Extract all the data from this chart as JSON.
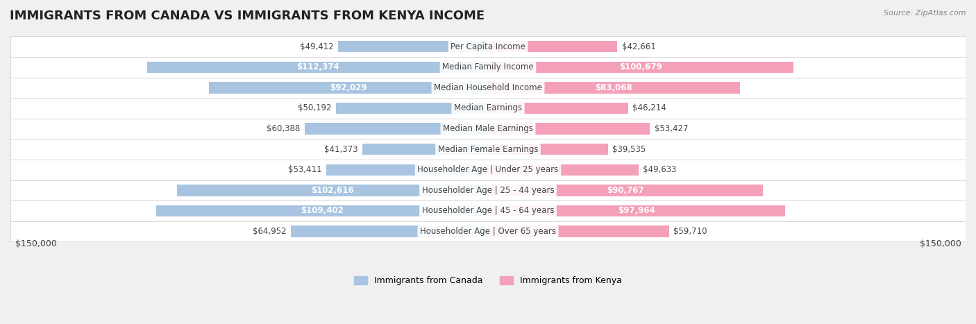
{
  "title": "IMMIGRANTS FROM CANADA VS IMMIGRANTS FROM KENYA INCOME",
  "source": "Source: ZipAtlas.com",
  "categories": [
    "Per Capita Income",
    "Median Family Income",
    "Median Household Income",
    "Median Earnings",
    "Median Male Earnings",
    "Median Female Earnings",
    "Householder Age | Under 25 years",
    "Householder Age | 25 - 44 years",
    "Householder Age | 45 - 64 years",
    "Householder Age | Over 65 years"
  ],
  "canada_values": [
    49412,
    112374,
    92029,
    50192,
    60388,
    41373,
    53411,
    102616,
    109402,
    64952
  ],
  "kenya_values": [
    42661,
    100679,
    83068,
    46214,
    53427,
    39535,
    49633,
    90767,
    97964,
    59710
  ],
  "canada_labels": [
    "$49,412",
    "$112,374",
    "$92,029",
    "$50,192",
    "$60,388",
    "$41,373",
    "$53,411",
    "$102,616",
    "$109,402",
    "$64,952"
  ],
  "kenya_labels": [
    "$42,661",
    "$100,679",
    "$83,068",
    "$46,214",
    "$53,427",
    "$39,535",
    "$49,633",
    "$90,767",
    "$97,964",
    "$59,710"
  ],
  "canada_color": "#a8c4e0",
  "kenya_color": "#f4a0b8",
  "canada_label_color_threshold": 70000,
  "kenya_label_color_threshold": 70000,
  "max_value": 150000,
  "background_color": "#f0f0f0",
  "legend_canada": "Immigrants from Canada",
  "legend_kenya": "Immigrants from Kenya",
  "xlabel_left": "$150,000",
  "xlabel_right": "$150,000",
  "title_fontsize": 13,
  "label_fontsize": 8.5,
  "category_fontsize": 8.5
}
